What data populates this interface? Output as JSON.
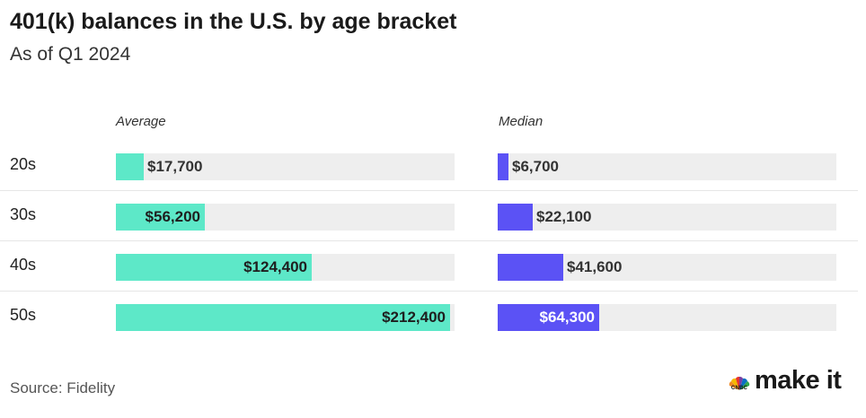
{
  "title": "401(k) balances in the U.S. by age bracket",
  "subtitle": "As of Q1 2024",
  "source": "Source: Fidelity",
  "brand": {
    "network": "CNBC",
    "name": "make it"
  },
  "colors": {
    "average": "#5de8c8",
    "median": "#5b52f5",
    "track": "#eeeeee"
  },
  "chart_data": {
    "type": "bar",
    "orientation": "horizontal",
    "title": "401(k) balances in the U.S. by age bracket",
    "subtitle": "As of Q1 2024",
    "categories": [
      "20s",
      "30s",
      "40s",
      "50s"
    ],
    "series": [
      {
        "name": "Average",
        "values": [
          17700,
          56200,
          124400,
          212400
        ],
        "labels": [
          "$17,700",
          "$56,200",
          "$124,400",
          "$212,400"
        ],
        "max": 215000
      },
      {
        "name": "Median",
        "values": [
          6700,
          22100,
          41600,
          64300
        ],
        "labels": [
          "$6,700",
          "$22,100",
          "$41,600",
          "$64,300"
        ],
        "max": 215000
      }
    ]
  }
}
